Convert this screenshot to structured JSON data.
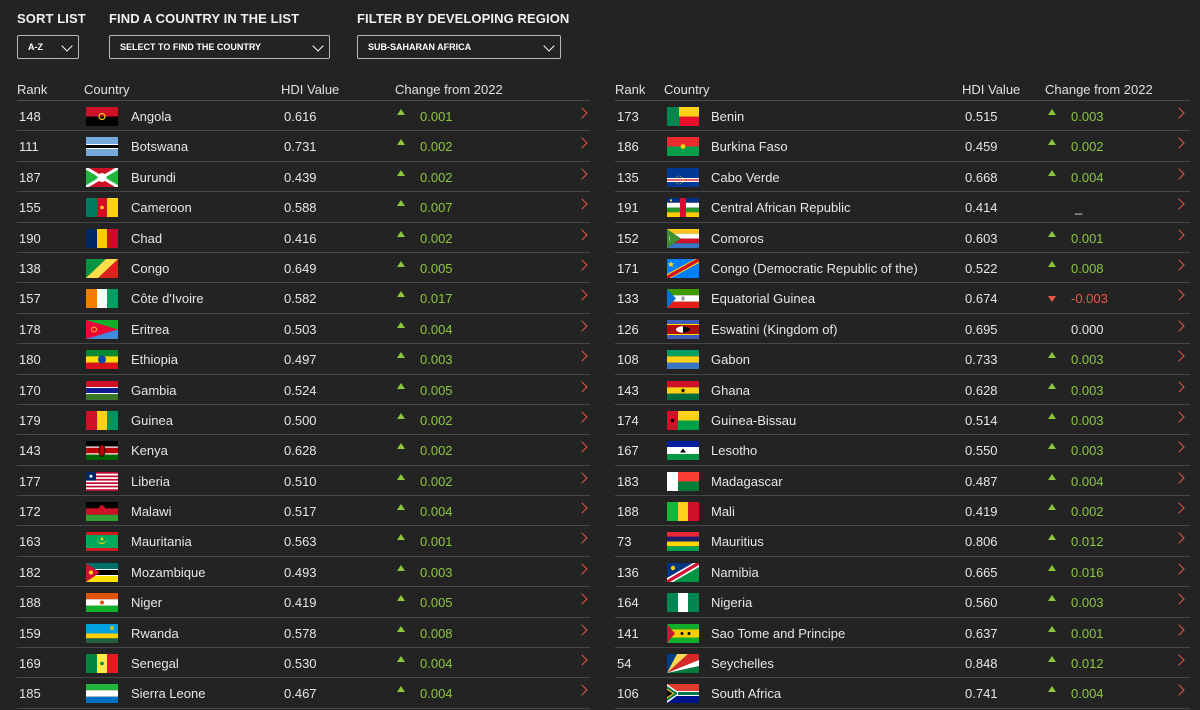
{
  "filters": {
    "sort": {
      "label": "SORT LIST",
      "value": "A-Z"
    },
    "find": {
      "label": "FIND A COUNTRY IN THE LIST",
      "value": "SELECT TO FIND THE COUNTRY"
    },
    "region": {
      "label": "FILTER BY DEVELOPING REGION",
      "value": "SUB-SAHARAN AFRICA"
    }
  },
  "headers": {
    "rank": "Rank",
    "country": "Country",
    "hdi": "HDI Value",
    "change": "Change from 2022"
  },
  "colors": {
    "up": "#8cc63f",
    "down": "#e8584a",
    "arrow": "#e8584a"
  },
  "left_rows": [
    {
      "rank": "148",
      "country": "Angola",
      "hdi": "0.616",
      "change": "0.001",
      "dir": "up",
      "flag": "angola"
    },
    {
      "rank": "111",
      "country": "Botswana",
      "hdi": "0.731",
      "change": "0.002",
      "dir": "up",
      "flag": "botswana"
    },
    {
      "rank": "187",
      "country": "Burundi",
      "hdi": "0.439",
      "change": "0.002",
      "dir": "up",
      "flag": "burundi"
    },
    {
      "rank": "155",
      "country": "Cameroon",
      "hdi": "0.588",
      "change": "0.007",
      "dir": "up",
      "flag": "cameroon"
    },
    {
      "rank": "190",
      "country": "Chad",
      "hdi": "0.416",
      "change": "0.002",
      "dir": "up",
      "flag": "chad"
    },
    {
      "rank": "138",
      "country": "Congo",
      "hdi": "0.649",
      "change": "0.005",
      "dir": "up",
      "flag": "congo"
    },
    {
      "rank": "157",
      "country": "Côte d'Ivoire",
      "hdi": "0.582",
      "change": "0.017",
      "dir": "up",
      "flag": "ivorycoast"
    },
    {
      "rank": "178",
      "country": "Eritrea",
      "hdi": "0.503",
      "change": "0.004",
      "dir": "up",
      "flag": "eritrea"
    },
    {
      "rank": "180",
      "country": "Ethiopia",
      "hdi": "0.497",
      "change": "0.003",
      "dir": "up",
      "flag": "ethiopia"
    },
    {
      "rank": "170",
      "country": "Gambia",
      "hdi": "0.524",
      "change": "0.005",
      "dir": "up",
      "flag": "gambia"
    },
    {
      "rank": "179",
      "country": "Guinea",
      "hdi": "0.500",
      "change": "0.002",
      "dir": "up",
      "flag": "guinea"
    },
    {
      "rank": "143",
      "country": "Kenya",
      "hdi": "0.628",
      "change": "0.002",
      "dir": "up",
      "flag": "kenya"
    },
    {
      "rank": "177",
      "country": "Liberia",
      "hdi": "0.510",
      "change": "0.002",
      "dir": "up",
      "flag": "liberia"
    },
    {
      "rank": "172",
      "country": "Malawi",
      "hdi": "0.517",
      "change": "0.004",
      "dir": "up",
      "flag": "malawi"
    },
    {
      "rank": "163",
      "country": "Mauritania",
      "hdi": "0.563",
      "change": "0.001",
      "dir": "up",
      "flag": "mauritania"
    },
    {
      "rank": "182",
      "country": "Mozambique",
      "hdi": "0.493",
      "change": "0.003",
      "dir": "up",
      "flag": "mozambique"
    },
    {
      "rank": "188",
      "country": "Niger",
      "hdi": "0.419",
      "change": "0.005",
      "dir": "up",
      "flag": "niger"
    },
    {
      "rank": "159",
      "country": "Rwanda",
      "hdi": "0.578",
      "change": "0.008",
      "dir": "up",
      "flag": "rwanda"
    },
    {
      "rank": "169",
      "country": "Senegal",
      "hdi": "0.530",
      "change": "0.004",
      "dir": "up",
      "flag": "senegal"
    },
    {
      "rank": "185",
      "country": "Sierra Leone",
      "hdi": "0.467",
      "change": "0.004",
      "dir": "up",
      "flag": "sierraleone"
    }
  ],
  "right_rows": [
    {
      "rank": "173",
      "country": "Benin",
      "hdi": "0.515",
      "change": "0.003",
      "dir": "up",
      "flag": "benin"
    },
    {
      "rank": "186",
      "country": "Burkina Faso",
      "hdi": "0.459",
      "change": "0.002",
      "dir": "up",
      "flag": "burkinafaso"
    },
    {
      "rank": "135",
      "country": "Cabo Verde",
      "hdi": "0.668",
      "change": "0.004",
      "dir": "up",
      "flag": "caboverde"
    },
    {
      "rank": "191",
      "country": "Central African Republic",
      "hdi": "0.414",
      "change": "_",
      "dir": "none",
      "flag": "car"
    },
    {
      "rank": "152",
      "country": "Comoros",
      "hdi": "0.603",
      "change": "0.001",
      "dir": "up",
      "flag": "comoros"
    },
    {
      "rank": "171",
      "country": "Congo (Democratic Republic of the)",
      "hdi": "0.522",
      "change": "0.008",
      "dir": "up",
      "flag": "drc"
    },
    {
      "rank": "133",
      "country": "Equatorial Guinea",
      "hdi": "0.674",
      "change": "-0.003",
      "dir": "down",
      "flag": "eqguinea"
    },
    {
      "rank": "126",
      "country": "Eswatini (Kingdom of)",
      "hdi": "0.695",
      "change": "0.000",
      "dir": "none",
      "flag": "eswatini"
    },
    {
      "rank": "108",
      "country": "Gabon",
      "hdi": "0.733",
      "change": "0.003",
      "dir": "up",
      "flag": "gabon"
    },
    {
      "rank": "143",
      "country": "Ghana",
      "hdi": "0.628",
      "change": "0.003",
      "dir": "up",
      "flag": "ghana"
    },
    {
      "rank": "174",
      "country": "Guinea-Bissau",
      "hdi": "0.514",
      "change": "0.003",
      "dir": "up",
      "flag": "guineabissau"
    },
    {
      "rank": "167",
      "country": "Lesotho",
      "hdi": "0.550",
      "change": "0.003",
      "dir": "up",
      "flag": "lesotho"
    },
    {
      "rank": "183",
      "country": "Madagascar",
      "hdi": "0.487",
      "change": "0.004",
      "dir": "up",
      "flag": "madagascar"
    },
    {
      "rank": "188",
      "country": "Mali",
      "hdi": "0.419",
      "change": "0.002",
      "dir": "up",
      "flag": "mali"
    },
    {
      "rank": "73",
      "country": "Mauritius",
      "hdi": "0.806",
      "change": "0.012",
      "dir": "up",
      "flag": "mauritius"
    },
    {
      "rank": "136",
      "country": "Namibia",
      "hdi": "0.665",
      "change": "0.016",
      "dir": "up",
      "flag": "namibia"
    },
    {
      "rank": "164",
      "country": "Nigeria",
      "hdi": "0.560",
      "change": "0.003",
      "dir": "up",
      "flag": "nigeria"
    },
    {
      "rank": "141",
      "country": "Sao Tome and Principe",
      "hdi": "0.637",
      "change": "0.001",
      "dir": "up",
      "flag": "saotome"
    },
    {
      "rank": "54",
      "country": "Seychelles",
      "hdi": "0.848",
      "change": "0.012",
      "dir": "up",
      "flag": "seychelles"
    },
    {
      "rank": "106",
      "country": "South Africa",
      "hdi": "0.741",
      "change": "0.004",
      "dir": "up",
      "flag": "southafrica"
    }
  ]
}
